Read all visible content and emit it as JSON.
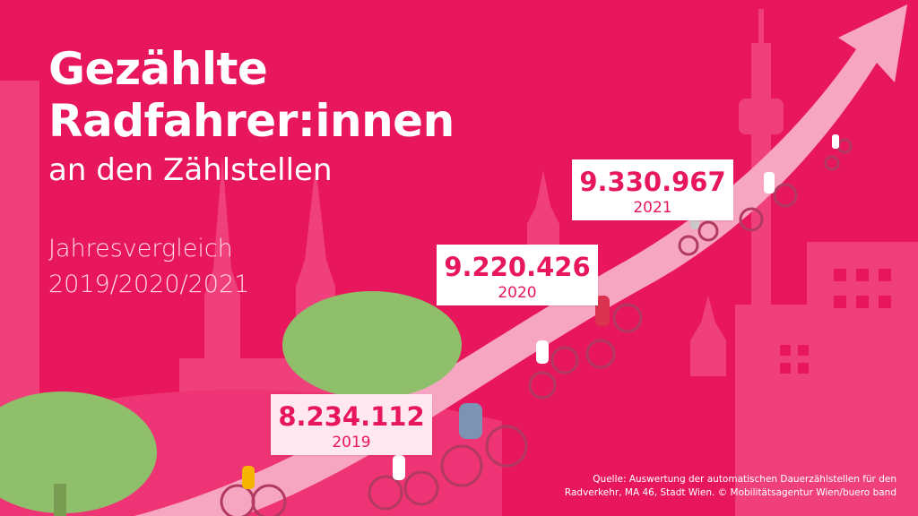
{
  "title_line1": "Gezählte",
  "title_line2": "Radfahrer:innen",
  "subtitle": "an den Zählstellen",
  "comparison_line1": "Jahresvergleich",
  "comparison_line2": "2019/2020/2021",
  "source_line1": "Quelle: Auswertung der automatischen Dauerzählstellen für den",
  "source_line2": "Radverkehr, MA 46, Stadt Wien. © Mobilitätsagentur Wien/buero band",
  "colors": {
    "background": "#e8175d",
    "skyline": "#f0407c",
    "road": "#f7a6c2",
    "value_text": "#e8175d",
    "tree": "#8fbf6a"
  },
  "chart_data": {
    "type": "bar",
    "categories": [
      "2019",
      "2020",
      "2021"
    ],
    "values": [
      8234112,
      9220426,
      9330967
    ],
    "value_labels": [
      "8.234.112",
      "9.220.426",
      "9.330.967"
    ]
  }
}
